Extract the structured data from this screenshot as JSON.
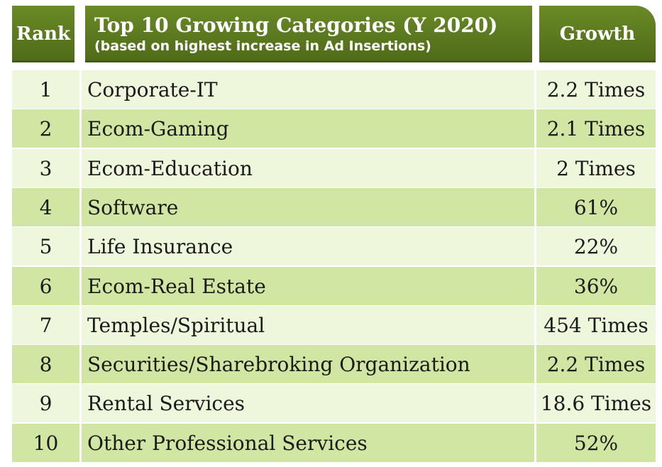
{
  "chart_data": {
    "type": "table",
    "columns": {
      "rank": "Rank",
      "category_title": "Top 10 Growing Categories (Y 2020)",
      "category_subtitle": "(based on highest increase in Ad Insertions)",
      "growth": "Growth"
    },
    "rows": [
      {
        "rank": "1",
        "category": "Corporate-IT",
        "growth": "2.2 Times"
      },
      {
        "rank": "2",
        "category": "Ecom-Gaming",
        "growth": "2.1 Times"
      },
      {
        "rank": "3",
        "category": "Ecom-Education",
        "growth": "2 Times"
      },
      {
        "rank": "4",
        "category": "Software",
        "growth": "61%"
      },
      {
        "rank": "5",
        "category": "Life Insurance",
        "growth": "22%"
      },
      {
        "rank": "6",
        "category": "Ecom-Real Estate",
        "growth": "36%"
      },
      {
        "rank": "7",
        "category": "Temples/Spiritual",
        "growth": "454 Times"
      },
      {
        "rank": "8",
        "category": "Securities/Sharebroking Organization",
        "growth": "2.2 Times"
      },
      {
        "rank": "9",
        "category": "Rental Services",
        "growth": "18.6 Times"
      },
      {
        "rank": "10",
        "category": "Other Professional Services",
        "growth": "52%"
      }
    ]
  },
  "colors": {
    "header_green": "#5a7a1e",
    "row_light": "#eef6dc",
    "row_dark": "#d2e6a4"
  }
}
